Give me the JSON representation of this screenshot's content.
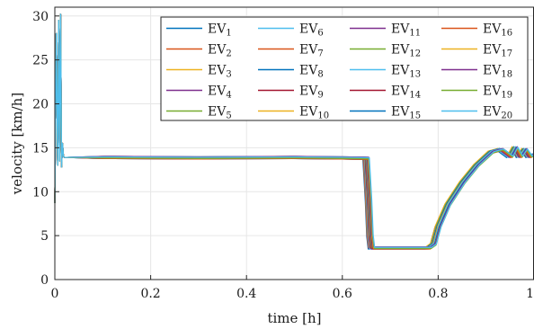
{
  "chart_data": {
    "type": "line",
    "xlabel": "time [h]",
    "ylabel": "velocity [km/h]",
    "xlim": [
      0,
      1
    ],
    "ylim": [
      0,
      31
    ],
    "xticks": [
      0,
      0.2,
      0.4,
      0.6,
      0.8,
      1
    ],
    "xtick_labels": [
      "0",
      "0.2",
      "0.4",
      "0.6",
      "0.8",
      "1"
    ],
    "yticks": [
      0,
      5,
      10,
      15,
      20,
      25,
      30
    ],
    "ytick_labels": [
      "0",
      "5",
      "10",
      "15",
      "20",
      "25",
      "30"
    ],
    "grid": true,
    "legend_position": "top-right",
    "legend_columns": 4,
    "series": [
      {
        "name": "EV",
        "sub": "1",
        "color": "#0072BD"
      },
      {
        "name": "EV",
        "sub": "2",
        "color": "#D95319"
      },
      {
        "name": "EV",
        "sub": "3",
        "color": "#EDB120"
      },
      {
        "name": "EV",
        "sub": "4",
        "color": "#7E2F8E"
      },
      {
        "name": "EV",
        "sub": "5",
        "color": "#77AC30"
      },
      {
        "name": "EV",
        "sub": "6",
        "color": "#4DBEEE"
      },
      {
        "name": "EV",
        "sub": "7",
        "color": "#D95319"
      },
      {
        "name": "EV",
        "sub": "8",
        "color": "#0072BD"
      },
      {
        "name": "EV",
        "sub": "9",
        "color": "#A2142F"
      },
      {
        "name": "EV",
        "sub": "10",
        "color": "#EDB120"
      },
      {
        "name": "EV",
        "sub": "11",
        "color": "#7E2F8E"
      },
      {
        "name": "EV",
        "sub": "12",
        "color": "#77AC30"
      },
      {
        "name": "EV",
        "sub": "13",
        "color": "#4DBEEE"
      },
      {
        "name": "EV",
        "sub": "14",
        "color": "#A2142F"
      },
      {
        "name": "EV",
        "sub": "15",
        "color": "#0072BD"
      },
      {
        "name": "EV",
        "sub": "16",
        "color": "#D95319"
      },
      {
        "name": "EV",
        "sub": "17",
        "color": "#EDB120"
      },
      {
        "name": "EV",
        "sub": "18",
        "color": "#7E2F8E"
      },
      {
        "name": "EV",
        "sub": "19",
        "color": "#77AC30"
      },
      {
        "name": "EV",
        "sub": "20",
        "color": "#4DBEEE"
      }
    ],
    "profile": {
      "x": [
        0,
        0.003,
        0.006,
        0.008,
        0.01,
        0.012,
        0.014,
        0.016,
        0.018,
        0.02,
        0.025,
        0.1,
        0.3,
        0.5,
        0.6,
        0.65,
        0.655,
        0.658,
        0.661,
        0.665,
        0.7,
        0.75,
        0.78,
        0.79,
        0.8,
        0.82,
        0.85,
        0.88,
        0.91,
        0.93,
        0.95,
        0.96,
        0.97,
        0.98,
        0.99,
        1.0
      ],
      "y": [
        8.7,
        28.0,
        13.0,
        29.5,
        13.5,
        30.2,
        12.8,
        15.5,
        14.0,
        13.9,
        13.9,
        13.9,
        13.85,
        13.9,
        13.85,
        13.8,
        9.0,
        5.0,
        3.6,
        3.6,
        3.6,
        3.6,
        3.6,
        4.0,
        6.0,
        8.5,
        11.0,
        13.0,
        14.5,
        14.8,
        14.0,
        15.0,
        14.0,
        14.8,
        14.0,
        14.2
      ]
    }
  }
}
